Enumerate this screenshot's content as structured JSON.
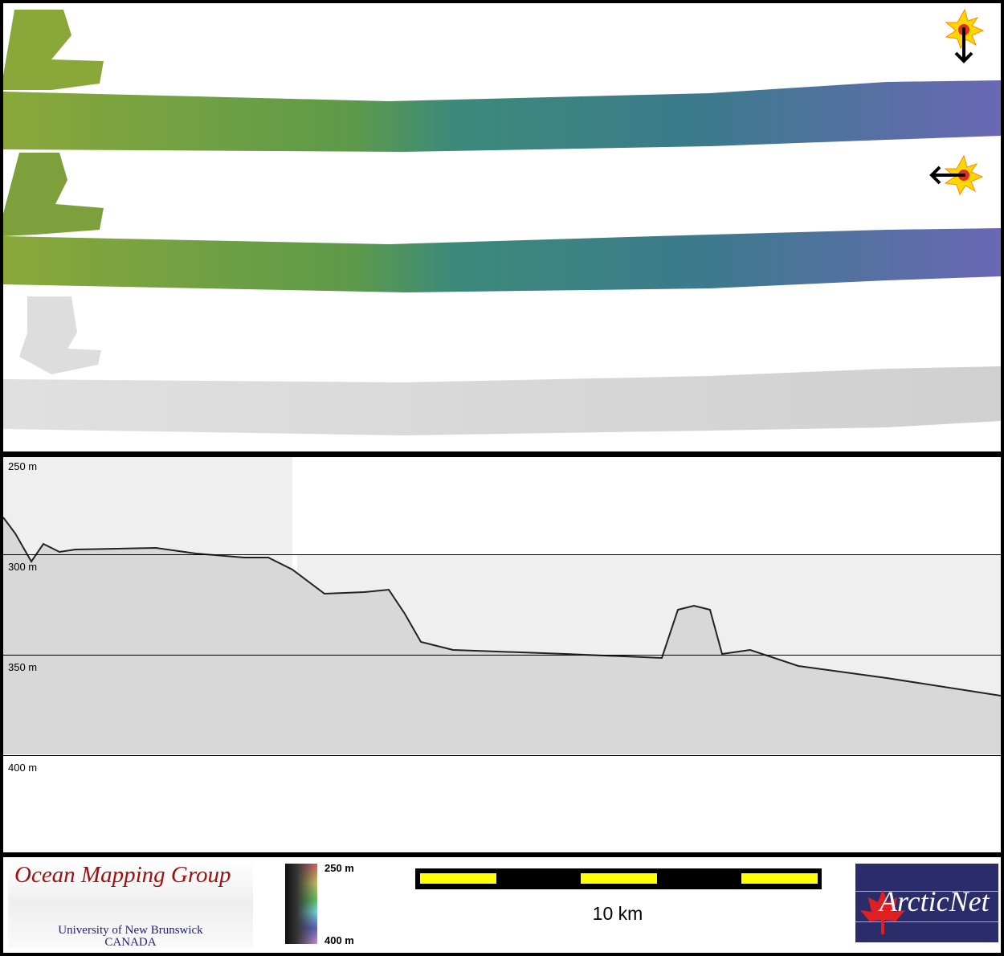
{
  "maps": {
    "panels": [
      "shaded-relief-sun-north",
      "shaded-relief-sun-east",
      "backscatter"
    ],
    "icons": [
      "sun-arrow-down-icon",
      "sun-arrow-left-icon"
    ]
  },
  "profile": {
    "depth_labels": [
      "250 m",
      "300 m",
      "350 m",
      "400 m"
    ]
  },
  "legend": {
    "logo_title": "Ocean Mapping Group",
    "logo_university": "University of New Brunswick",
    "logo_country": "CANADA",
    "colorbar_top": "250 m",
    "colorbar_bottom": "400 m",
    "scale_label": "10 km",
    "partner_logo": "ArcticNet",
    "colors": {
      "scale_fill": "#ffff00",
      "logo_red": "#a01010",
      "arcticnet_bg": "#2a2d6a"
    }
  }
}
